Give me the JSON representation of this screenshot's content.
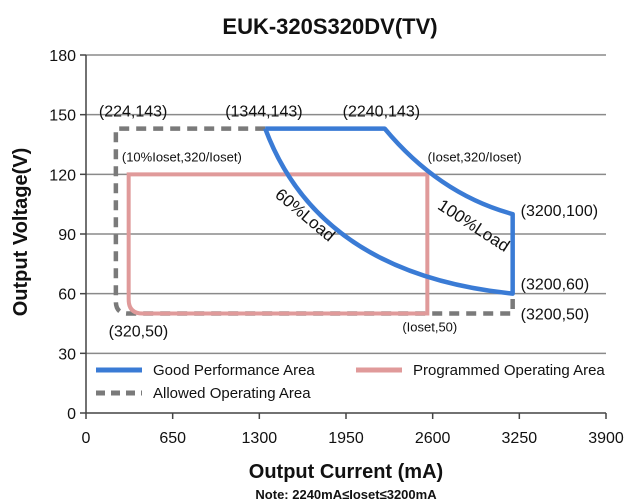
{
  "chart_data": {
    "type": "line",
    "title": "EUK-320S320DV(TV)",
    "xlabel": "Output Current (mA)",
    "ylabel": "Output Voltage(V)",
    "xlim": [
      0,
      3900
    ],
    "ylim": [
      0,
      180
    ],
    "x_ticks": [
      0,
      650,
      1300,
      1950,
      2600,
      3250,
      3900
    ],
    "x_tick_labels": [
      "0",
      "650",
      "1300",
      "1950",
      "2600",
      "3250",
      "3900"
    ],
    "y_ticks": [
      0,
      30,
      60,
      90,
      120,
      150,
      180
    ],
    "y_tick_labels": [
      "0",
      "30",
      "60",
      "90",
      "120",
      "150",
      "180"
    ],
    "grid": "horizontal",
    "series": [
      {
        "name": "Good Performance Area",
        "color": "#3a7bd5",
        "style": "solid",
        "points": [
          [
            1344,
            143
          ],
          [
            2240,
            143
          ],
          [
            2600,
            120
          ],
          [
            3200,
            100
          ],
          [
            3200,
            60
          ],
          [
            2240,
            68
          ],
          [
            1500,
            120
          ],
          [
            1344,
            143
          ]
        ]
      },
      {
        "name": "Programmed Operating Area",
        "color": "#e09a9a",
        "style": "solid",
        "points": [
          [
            320,
            50
          ],
          [
            2560,
            50
          ],
          [
            2560,
            120
          ],
          [
            320,
            120
          ],
          [
            320,
            50
          ]
        ]
      },
      {
        "name": "Allowed Operating Area",
        "color": "#7a7a7a",
        "style": "dashed",
        "points": [
          [
            224,
            143
          ],
          [
            1344,
            143
          ],
          [
            1344,
            143
          ],
          [
            224,
            143
          ],
          [
            224,
            50
          ],
          [
            3200,
            50
          ]
        ]
      }
    ],
    "annotations": [
      {
        "text": "(224,143)",
        "x": 224,
        "y": 143
      },
      {
        "text": "(1344,143)",
        "x": 1344,
        "y": 143
      },
      {
        "text": "(2240,143)",
        "x": 2240,
        "y": 143
      },
      {
        "text": "(10%Ioset,320/Ioset)",
        "x": 320,
        "y": 120
      },
      {
        "text": "(Ioset,320/Ioset)",
        "x": 2560,
        "y": 120
      },
      {
        "text": "(3200,100)",
        "x": 3200,
        "y": 100
      },
      {
        "text": "(3200,60)",
        "x": 3200,
        "y": 60
      },
      {
        "text": "(3200,50)",
        "x": 3200,
        "y": 50
      },
      {
        "text": "(320,50)",
        "x": 320,
        "y": 50
      },
      {
        "text": "(Ioset,50)",
        "x": 2560,
        "y": 50
      },
      {
        "text": "60%Load"
      },
      {
        "text": "100%Load"
      }
    ],
    "legend": {
      "placement": "bottom-inside",
      "entries": [
        "Good Performance Area",
        "Programmed Operating Area",
        "Allowed Operating Area"
      ]
    },
    "note": "Note:  2240mA≤Ioset≤3200mA"
  }
}
